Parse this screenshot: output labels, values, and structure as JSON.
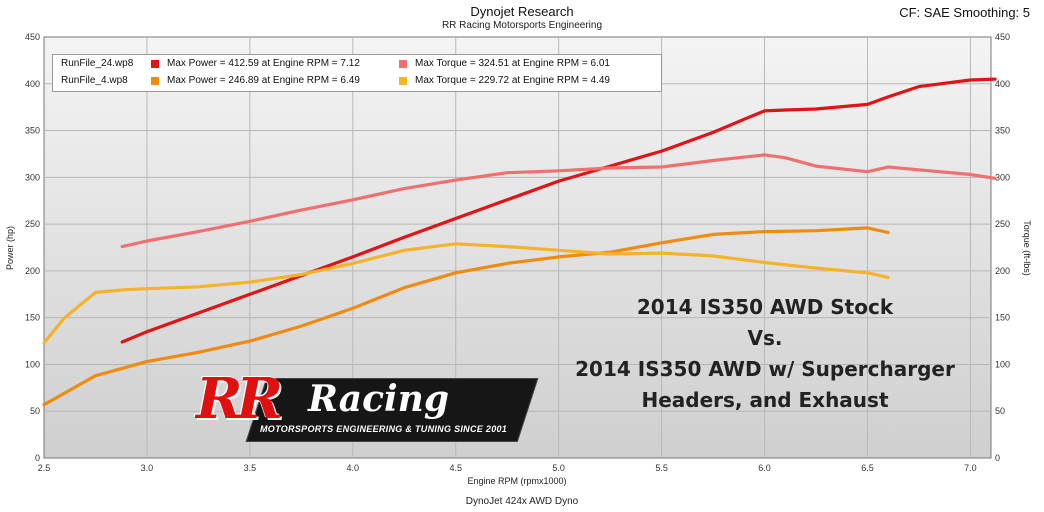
{
  "header": {
    "title": "Dynojet Research",
    "subtitle": "RR Racing Motorsports Engineering",
    "settings": "CF: SAE Smoothing: 5"
  },
  "footer": {
    "dyno": "DynoJet 424x AWD Dyno"
  },
  "legend": {
    "rows": [
      {
        "file": "RunFile_24.wp8",
        "power": "Max Power = 412.59 at Engine RPM = 7.12",
        "torque": "Max Torque = 324.51 at Engine RPM = 6.01",
        "power_color": "#e01414",
        "torque_color": "#f07070"
      },
      {
        "file": "RunFile_4.wp8",
        "power": "Max Power = 246.89 at Engine RPM = 6.49",
        "torque": "Max Torque = 229.72 at Engine RPM = 4.49",
        "power_color": "#f08a10",
        "torque_color": "#f5b22a"
      }
    ]
  },
  "annotation": {
    "line1": "2014 IS350  AWD Stock",
    "line2": "Vs.",
    "line3": "2014 IS350  AWD w/ Supercharger",
    "line4": "Headers, and Exhaust"
  },
  "logo": {
    "rr": "RR",
    "racing": "Racing",
    "tagline": "MOTORSPORTS ENGINEERING & TUNING SINCE 2001"
  },
  "chart_data": {
    "type": "line",
    "xlabel": "Engine RPM (rpmx1000)",
    "ylabel_left": "Power (hp)",
    "ylabel_right": "Torque (ft-lbs)",
    "xlim": [
      2.5,
      7.1
    ],
    "ylim": [
      0,
      450
    ],
    "x_ticks": [
      2.5,
      3.0,
      3.5,
      4.0,
      4.5,
      5.0,
      5.5,
      6.0,
      6.5,
      7.0
    ],
    "y_ticks": [
      0,
      50,
      100,
      150,
      200,
      250,
      300,
      350,
      400,
      450
    ],
    "grid": true,
    "legend_position": "top-left",
    "series": [
      {
        "name": "RunFile_24.wp8 Power",
        "color": "#e01414",
        "x": [
          2.88,
          3.0,
          3.25,
          3.5,
          3.75,
          4.0,
          4.25,
          4.5,
          4.75,
          5.0,
          5.25,
          5.5,
          5.75,
          5.9,
          6.0,
          6.1,
          6.25,
          6.5,
          6.6,
          6.75,
          7.0,
          7.12
        ],
        "y": [
          124,
          135,
          155,
          175,
          195,
          215,
          236,
          256,
          276,
          296,
          312,
          328,
          348,
          362,
          371,
          372,
          373,
          378,
          386,
          397,
          404,
          405
        ]
      },
      {
        "name": "RunFile_24.wp8 Torque",
        "color": "#f07070",
        "x": [
          2.88,
          3.0,
          3.25,
          3.5,
          3.75,
          4.0,
          4.25,
          4.5,
          4.75,
          5.0,
          5.25,
          5.5,
          5.75,
          6.0,
          6.1,
          6.25,
          6.5,
          6.6,
          6.75,
          7.0,
          7.12
        ],
        "y": [
          226,
          232,
          242,
          253,
          265,
          276,
          288,
          297,
          305,
          307,
          310,
          311,
          318,
          324,
          321,
          312,
          306,
          311,
          308,
          303,
          299
        ]
      },
      {
        "name": "RunFile_4.wp8 Power",
        "color": "#f08a10",
        "x": [
          2.5,
          2.75,
          3.0,
          3.25,
          3.5,
          3.75,
          4.0,
          4.25,
          4.5,
          4.75,
          5.0,
          5.25,
          5.5,
          5.75,
          6.0,
          6.25,
          6.5,
          6.6
        ],
        "y": [
          57,
          88,
          103,
          113,
          125,
          141,
          160,
          182,
          198,
          208,
          215,
          220,
          230,
          239,
          242,
          243,
          246,
          241
        ]
      },
      {
        "name": "RunFile_4.wp8 Torque",
        "color": "#f5b22a",
        "x": [
          2.5,
          2.6,
          2.75,
          2.9,
          3.0,
          3.25,
          3.5,
          3.75,
          4.0,
          4.25,
          4.5,
          4.75,
          5.0,
          5.25,
          5.5,
          5.75,
          6.0,
          6.25,
          6.5,
          6.6
        ],
        "y": [
          123,
          150,
          177,
          180,
          181,
          183,
          188,
          196,
          208,
          222,
          229,
          226,
          222,
          218,
          219,
          216,
          209,
          203,
          198,
          193
        ]
      }
    ]
  }
}
